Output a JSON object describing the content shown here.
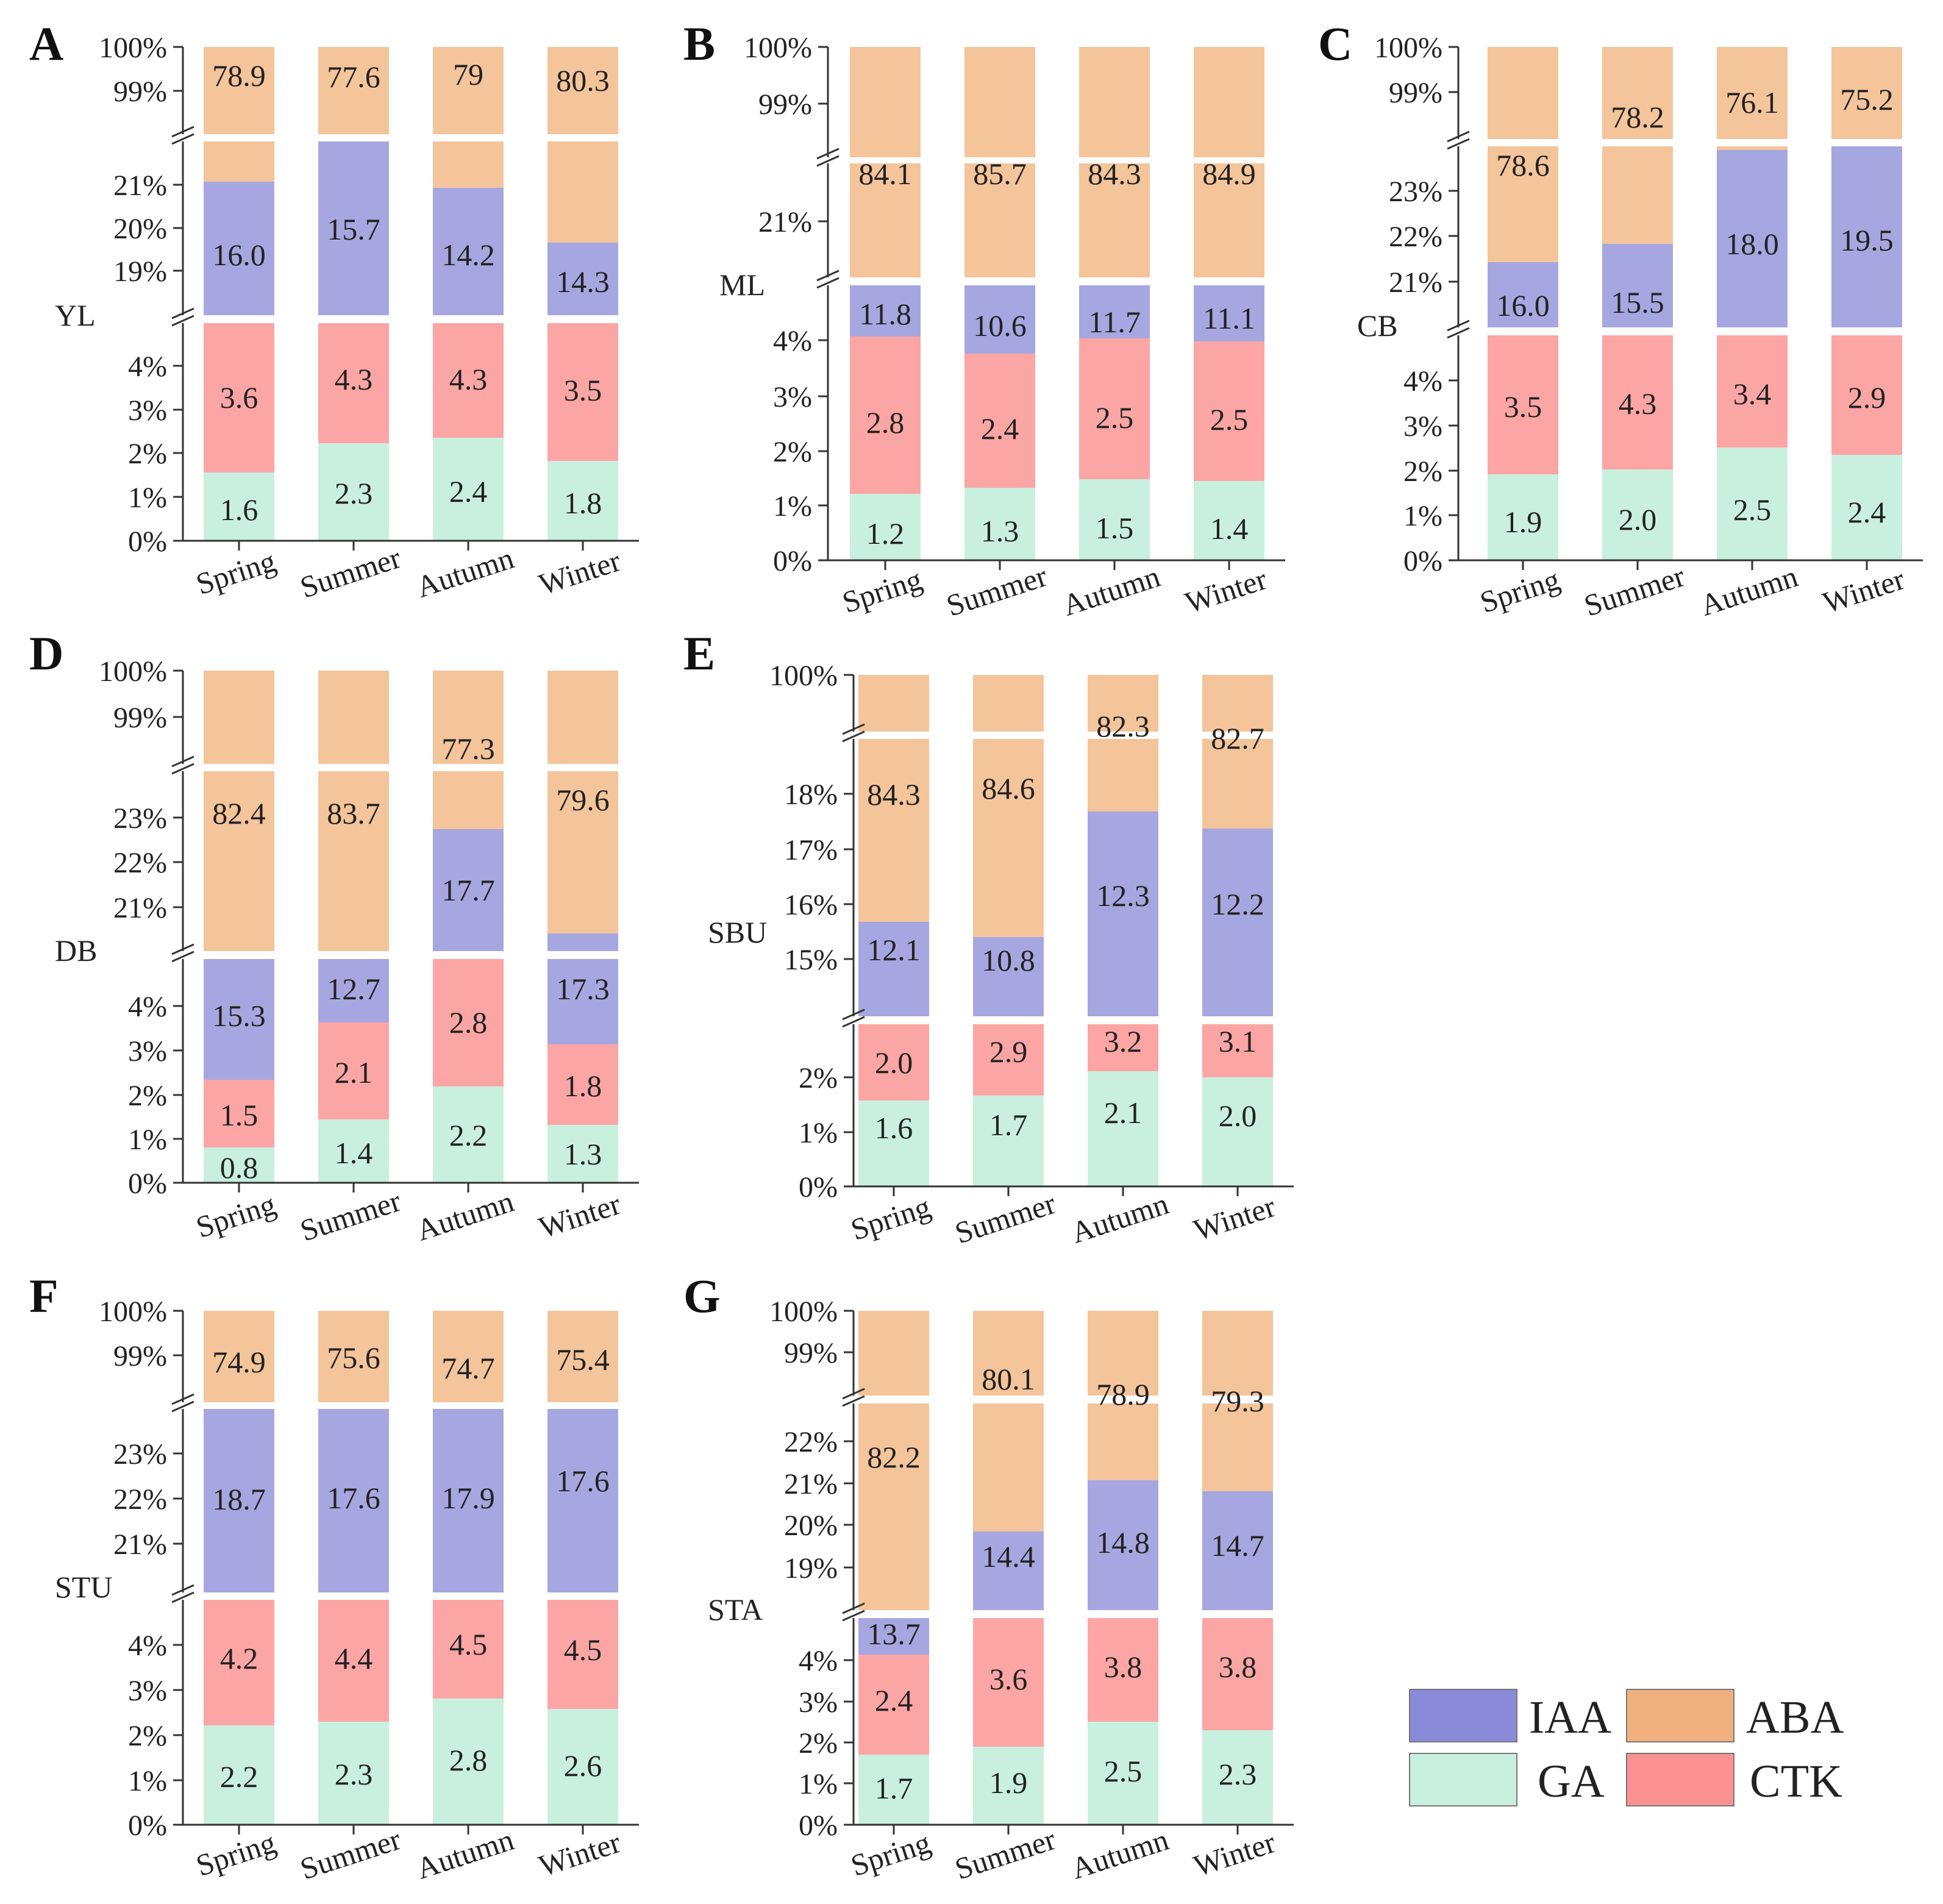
{
  "figure": {
    "description_colors": {
      "GA": "#c9f0df",
      "CTK": "#fca5a5",
      "IAA": "#a6a7e0",
      "ABA": "#f4c49a",
      "axis": "#333333",
      "break_mark": "#333333"
    },
    "legend": [
      {
        "key": "IAA",
        "label": "IAA"
      },
      {
        "key": "ABA",
        "label": "ABA"
      },
      {
        "key": "GA",
        "label": "GA"
      },
      {
        "key": "CTK",
        "label": "CTK"
      }
    ]
  },
  "chart_data": [
    {
      "panel": "A",
      "ylabel": "YL",
      "type": "bar",
      "stacked": true,
      "broken_axis": true,
      "categories": [
        "Spring",
        "Summer",
        "Autumn",
        "Winter"
      ],
      "segments": [
        {
          "ticks": [
            "0%",
            "1%",
            "2%",
            "3%",
            "4%"
          ]
        },
        {
          "ticks": [
            "19%",
            "20%",
            "21%"
          ]
        },
        {
          "ticks": [
            "99%",
            "100%"
          ]
        }
      ],
      "series": [
        {
          "name": "GA",
          "values": [
            1.6,
            2.3,
            2.4,
            1.8
          ],
          "labels": [
            "1.6",
            "2.3",
            "2.4",
            "1.8"
          ]
        },
        {
          "name": "CTK",
          "values": [
            3.6,
            4.3,
            4.3,
            3.5
          ],
          "labels": [
            "3.6",
            "4.3",
            "4.3",
            "3.5"
          ]
        },
        {
          "name": "IAA",
          "values": [
            16.0,
            15.7,
            14.2,
            14.3
          ],
          "labels": [
            "16.0",
            "15.7",
            "14.2",
            "14.3"
          ]
        },
        {
          "name": "ABA",
          "values": [
            78.9,
            77.6,
            79,
            80.3
          ],
          "labels": [
            "78.9",
            "77.6",
            "79",
            "80.3"
          ]
        }
      ]
    },
    {
      "panel": "B",
      "ylabel": "ML",
      "type": "bar",
      "stacked": true,
      "broken_axis": true,
      "categories": [
        "Spring",
        "Summer",
        "Autumn",
        "Winter"
      ],
      "segments": [
        {
          "ticks": [
            "0%",
            "1%",
            "2%",
            "3%",
            "4%"
          ]
        },
        {
          "ticks": [
            "21%"
          ]
        },
        {
          "ticks": [
            "99%",
            "100%"
          ]
        }
      ],
      "series": [
        {
          "name": "GA",
          "values": [
            1.2,
            1.3,
            1.5,
            1.4
          ],
          "labels": [
            "1.2",
            "1.3",
            "1.5",
            "1.4"
          ]
        },
        {
          "name": "CTK",
          "values": [
            2.8,
            2.4,
            2.5,
            2.5
          ],
          "labels": [
            "2.8",
            "2.4",
            "2.5",
            "2.5"
          ]
        },
        {
          "name": "IAA",
          "values": [
            11.8,
            10.6,
            11.7,
            11.1
          ],
          "labels": [
            "11.8",
            "10.6",
            "11.7",
            "11.1"
          ]
        },
        {
          "name": "ABA",
          "values": [
            84.1,
            85.7,
            84.3,
            84.9
          ],
          "labels": [
            "84.1",
            "85.7",
            "84.3",
            "84.9"
          ]
        }
      ]
    },
    {
      "panel": "C",
      "ylabel": "CB",
      "type": "bar",
      "stacked": true,
      "broken_axis": true,
      "categories": [
        "Spring",
        "Summer",
        "Autumn",
        "Winter"
      ],
      "segments": [
        {
          "ticks": [
            "0%",
            "1%",
            "2%",
            "3%",
            "4%"
          ]
        },
        {
          "ticks": [
            "21%",
            "22%",
            "23%"
          ]
        },
        {
          "ticks": [
            "99%",
            "100%"
          ]
        }
      ],
      "series": [
        {
          "name": "GA",
          "values": [
            1.9,
            2.0,
            2.5,
            2.4
          ],
          "labels": [
            "1.9",
            "2.0",
            "2.5",
            "2.4"
          ]
        },
        {
          "name": "CTK",
          "values": [
            3.5,
            4.3,
            3.4,
            2.9
          ],
          "labels": [
            "3.5",
            "4.3",
            "3.4",
            "2.9"
          ]
        },
        {
          "name": "IAA",
          "values": [
            16.0,
            15.5,
            18.0,
            19.5
          ],
          "labels": [
            "16.0",
            "15.5",
            "18.0",
            "19.5"
          ]
        },
        {
          "name": "ABA",
          "values": [
            78.6,
            78.2,
            76.1,
            75.2
          ],
          "labels": [
            "78.6",
            "78.2",
            "76.1",
            "75.2"
          ]
        }
      ]
    },
    {
      "panel": "D",
      "ylabel": "DB",
      "type": "bar",
      "stacked": true,
      "broken_axis": true,
      "categories": [
        "Spring",
        "Summer",
        "Autumn",
        "Winter"
      ],
      "segments": [
        {
          "ticks": [
            "0%",
            "1%",
            "2%",
            "3%",
            "4%"
          ]
        },
        {
          "ticks": [
            "21%",
            "22%",
            "23%"
          ]
        },
        {
          "ticks": [
            "99%",
            "100%"
          ]
        }
      ],
      "series": [
        {
          "name": "GA",
          "values": [
            0.8,
            1.4,
            2.2,
            1.3
          ],
          "labels": [
            "0.8",
            "1.4",
            "2.2",
            "1.3"
          ]
        },
        {
          "name": "CTK",
          "values": [
            1.5,
            2.1,
            2.8,
            1.8
          ],
          "labels": [
            "1.5",
            "2.1",
            "2.8",
            "1.8"
          ]
        },
        {
          "name": "IAA",
          "values": [
            15.3,
            12.7,
            17.7,
            17.3
          ],
          "labels": [
            "15.3",
            "12.7",
            "17.7",
            "17.3"
          ]
        },
        {
          "name": "ABA",
          "values": [
            82.4,
            83.7,
            77.3,
            79.6
          ],
          "labels": [
            "82.4",
            "83.7",
            "77.3",
            "79.6"
          ]
        }
      ]
    },
    {
      "panel": "E",
      "ylabel": "SBU",
      "type": "bar",
      "stacked": true,
      "broken_axis": true,
      "categories": [
        "Spring",
        "Summer",
        "Autumn",
        "Winter"
      ],
      "segments": [
        {
          "ticks": [
            "0%",
            "1%",
            "2%"
          ]
        },
        {
          "ticks": [
            "15%",
            "16%",
            "17%",
            "18%"
          ]
        },
        {
          "ticks": [
            "100%"
          ]
        }
      ],
      "series": [
        {
          "name": "GA",
          "values": [
            1.6,
            1.7,
            2.1,
            2.0
          ],
          "labels": [
            "1.6",
            "1.7",
            "2.1",
            "2.0"
          ]
        },
        {
          "name": "CTK",
          "values": [
            2.0,
            2.9,
            3.2,
            3.1
          ],
          "labels": [
            "2.0",
            "2.9",
            "3.2",
            "3.1"
          ]
        },
        {
          "name": "IAA",
          "values": [
            12.1,
            10.8,
            12.3,
            12.2
          ],
          "labels": [
            "12.1",
            "10.8",
            "12.3",
            "12.2"
          ]
        },
        {
          "name": "ABA",
          "values": [
            84.3,
            84.6,
            82.3,
            82.7
          ],
          "labels": [
            "84.3",
            "84.6",
            "82.3",
            "82.7"
          ]
        }
      ]
    },
    {
      "panel": "F",
      "ylabel": "STU",
      "type": "bar",
      "stacked": true,
      "broken_axis": true,
      "categories": [
        "Spring",
        "Summer",
        "Autumn",
        "Winter"
      ],
      "segments": [
        {
          "ticks": [
            "0%",
            "1%",
            "2%",
            "3%",
            "4%"
          ]
        },
        {
          "ticks": [
            "21%",
            "22%",
            "23%"
          ]
        },
        {
          "ticks": [
            "99%",
            "100%"
          ]
        }
      ],
      "series": [
        {
          "name": "GA",
          "values": [
            2.2,
            2.3,
            2.8,
            2.6
          ],
          "labels": [
            "2.2",
            "2.3",
            "2.8",
            "2.6"
          ]
        },
        {
          "name": "CTK",
          "values": [
            4.2,
            4.4,
            4.5,
            4.5
          ],
          "labels": [
            "4.2",
            "4.4",
            "4.5",
            "4.5"
          ]
        },
        {
          "name": "IAA",
          "values": [
            18.7,
            17.6,
            17.9,
            17.6
          ],
          "labels": [
            "18.7",
            "17.6",
            "17.9",
            "17.6"
          ]
        },
        {
          "name": "ABA",
          "values": [
            74.9,
            75.6,
            74.7,
            75.4
          ],
          "labels": [
            "74.9",
            "75.6",
            "74.7",
            "75.4"
          ]
        }
      ]
    },
    {
      "panel": "G",
      "ylabel": "STA",
      "type": "bar",
      "stacked": true,
      "broken_axis": true,
      "categories": [
        "Spring",
        "Summer",
        "Autumn",
        "Winter"
      ],
      "segments": [
        {
          "ticks": [
            "0%",
            "1%",
            "2%",
            "3%",
            "4%"
          ]
        },
        {
          "ticks": [
            "19%",
            "20%",
            "21%",
            "22%"
          ]
        },
        {
          "ticks": [
            "99%",
            "100%"
          ]
        }
      ],
      "series": [
        {
          "name": "GA",
          "values": [
            1.7,
            1.9,
            2.5,
            2.3
          ],
          "labels": [
            "1.7",
            "1.9",
            "2.5",
            "2.3"
          ]
        },
        {
          "name": "CTK",
          "values": [
            2.4,
            3.6,
            3.8,
            3.8
          ],
          "labels": [
            "2.4",
            "3.6",
            "3.8",
            "3.8"
          ]
        },
        {
          "name": "IAA",
          "values": [
            13.7,
            14.4,
            14.8,
            14.7
          ],
          "labels": [
            "13.7",
            "14.4",
            "14.8",
            "14.7"
          ]
        },
        {
          "name": "ABA",
          "values": [
            82.2,
            80.1,
            78.9,
            79.3
          ],
          "labels": [
            "82.2",
            "80.1",
            "78.9",
            "79.3"
          ]
        }
      ]
    }
  ]
}
